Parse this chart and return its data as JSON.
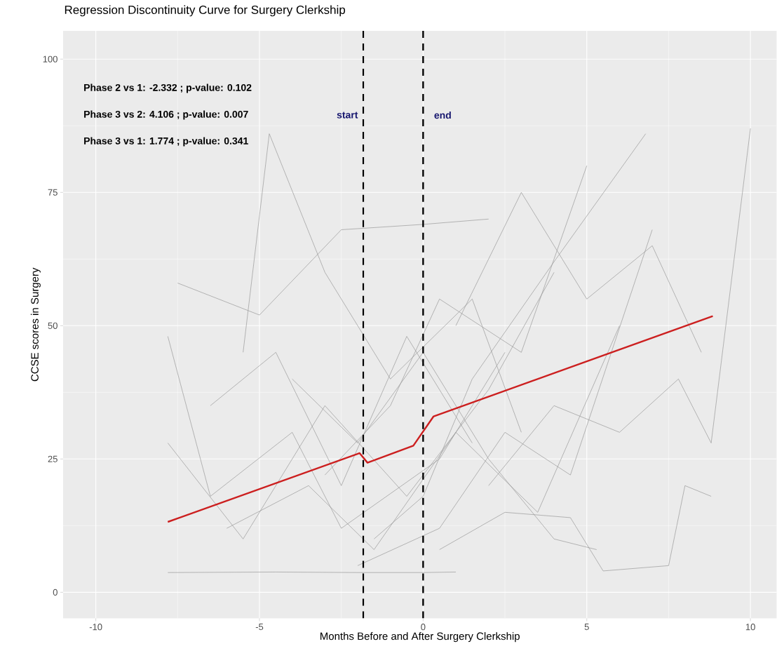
{
  "chart_data": {
    "type": "line",
    "title": "Regression Discontinuity Curve for Surgery Clerkship",
    "xlabel": "Months Before and After Surgery Clerkship",
    "ylabel": "CCSE scores in Surgery",
    "xlim": [
      -11,
      10.8
    ],
    "ylim": [
      -4.9,
      105.3
    ],
    "xticks": [
      -10,
      -5,
      0,
      5,
      10
    ],
    "yticks": [
      0,
      25,
      50,
      75,
      100
    ],
    "grid": true,
    "marker": "none",
    "line_style": "solid",
    "series": [
      {
        "color": "#999999",
        "x": [
          -7.8,
          -4.5,
          -2.0,
          0.0,
          1.0
        ],
        "values": [
          3.7,
          3.8,
          3.7,
          3.7,
          3.8
        ]
      },
      {
        "color": "#999999",
        "x": [
          -5.5,
          -4.7,
          -3.0,
          -1.0,
          1.5,
          3.0
        ],
        "values": [
          45,
          86,
          60,
          40,
          55,
          30
        ]
      },
      {
        "color": "#999999",
        "x": [
          -7.8,
          -6.5,
          -4.0,
          -2.5,
          0.5,
          2.5
        ],
        "values": [
          48,
          18,
          30,
          12,
          25,
          45
        ]
      },
      {
        "color": "#999999",
        "x": [
          -7.5,
          -5.0,
          -2.5,
          0.0,
          2.0
        ],
        "values": [
          58,
          52,
          68,
          69,
          70
        ]
      },
      {
        "color": "#999999",
        "x": [
          -7.8,
          -5.5,
          -3.0,
          -0.5,
          2.0,
          4.0
        ],
        "values": [
          28,
          10,
          35,
          18,
          38,
          60
        ]
      },
      {
        "color": "#999999",
        "x": [
          -6.0,
          -3.5,
          -1.5,
          1.0,
          3.5,
          6.0
        ],
        "values": [
          12,
          20,
          8,
          30,
          15,
          50
        ]
      },
      {
        "color": "#999999",
        "x": [
          -3.0,
          -1.0,
          0.5,
          3.0,
          5.0
        ],
        "values": [
          22,
          35,
          55,
          45,
          80
        ]
      },
      {
        "color": "#999999",
        "x": [
          -1.5,
          0.0,
          1.5,
          4.0,
          6.8
        ],
        "values": [
          10,
          18,
          40,
          62,
          86
        ]
      },
      {
        "color": "#999999",
        "x": [
          -2.0,
          0.5,
          2.5,
          4.5,
          7.0
        ],
        "values": [
          5,
          12,
          30,
          22,
          68
        ]
      },
      {
        "color": "#999999",
        "x": [
          0.5,
          2.5,
          4.5,
          5.5,
          7.5,
          8.0,
          8.8
        ],
        "values": [
          8,
          15,
          14,
          4,
          5,
          20,
          18
        ]
      },
      {
        "color": "#999999",
        "x": [
          2.0,
          4.0,
          6.0,
          7.8,
          8.8,
          10.0
        ],
        "values": [
          20,
          35,
          30,
          40,
          28,
          87
        ]
      },
      {
        "color": "#999999",
        "x": [
          -4.0,
          -2.0,
          0.0,
          2.0,
          4.0,
          5.3
        ],
        "values": [
          40,
          28,
          45,
          25,
          10,
          8
        ]
      },
      {
        "color": "#999999",
        "x": [
          -6.5,
          -4.5,
          -2.5,
          -0.5,
          1.5
        ],
        "values": [
          35,
          45,
          20,
          48,
          28
        ]
      },
      {
        "color": "#999999",
        "x": [
          1.0,
          3.0,
          5.0,
          7.0,
          8.5
        ],
        "values": [
          50,
          75,
          55,
          65,
          45
        ]
      },
      {
        "color": "#cc1f1f",
        "x": [
          -7.8,
          -1.94,
          -1.7,
          -0.3,
          0.32,
          8.85
        ],
        "values": [
          13.2,
          26.1,
          24.3,
          27.5,
          33.0,
          51.8
        ]
      }
    ],
    "ref_lines": [
      {
        "axis": "x",
        "value": -1.83,
        "label": "start",
        "color": "#000000",
        "line_style": "dashed"
      },
      {
        "axis": "x",
        "value": 0,
        "label": "end",
        "color": "#000000",
        "line_style": "dashed"
      }
    ],
    "annotations": [
      "Phase 2 vs 1: -2.332 ; p-value: 0.102",
      "Phase 3 vs 2: 4.106 ; p-value: 0.007",
      "Phase 3 vs 1: 1.774 ; p-value: 0.341"
    ]
  }
}
